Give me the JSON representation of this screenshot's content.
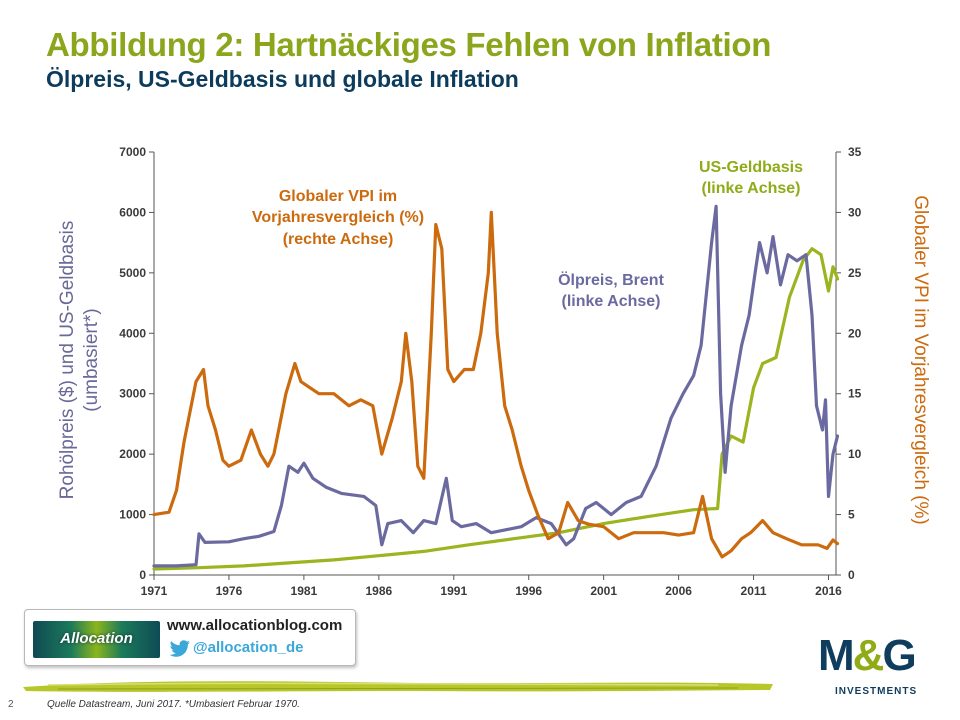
{
  "header": {
    "title": "Abbildung 2: Hartnäckiges Fehlen von Inflation",
    "subtitle": "Ölpreis, US-Geldbasis und globale Inflation"
  },
  "promo": {
    "logo_text": "Allocation",
    "website": "www.allocationblog.com",
    "twitter": "@allocation_de"
  },
  "footer": {
    "page_number": "2",
    "source": "Quelle Datastream, Juni 2017. *Umbasiert Februar 1970."
  },
  "brand": {
    "name_left": "M",
    "ampersand": "&",
    "name_right": "G",
    "tagline": "INVESTMENTS"
  },
  "colors": {
    "title": "#8ba51c",
    "subtitle": "#0d3b5c",
    "oil": "#6b6aa0",
    "money_base": "#9ab520",
    "cpi": "#cc6a0e",
    "axis": "#555555"
  },
  "chart_data": {
    "type": "line",
    "y_left": {
      "label_line1": "Rohölpreis ($) und US-Geldbasis",
      "label_line2": "(umbasiert*)",
      "range": [
        0,
        7000
      ],
      "ticks": [
        "0",
        "1000",
        "2000",
        "3000",
        "4000",
        "5000",
        "6000",
        "7000"
      ]
    },
    "y_right": {
      "label": "Globaler VPI im Vorjahresvergleich (%)",
      "range": [
        0,
        35
      ],
      "ticks": [
        "0",
        "5",
        "10",
        "15",
        "20",
        "25",
        "30",
        "35"
      ]
    },
    "x": {
      "range": [
        1971,
        2016.5
      ],
      "ticks": [
        "1971",
        "1976",
        "1981",
        "1986",
        "1991",
        "1996",
        "2001",
        "2006",
        "2011",
        "2016"
      ]
    },
    "annotations": {
      "cpi_line1": "Globaler VPI im",
      "cpi_line2": "Vorjahresvergleich (%)",
      "cpi_line3": "(rechte Achse)",
      "oil_line1": "Ölpreis, Brent",
      "oil_line2": "(linke Achse)",
      "mb_line1": "US-Geldbasis",
      "mb_line2": "(linke Achse)"
    },
    "series": [
      {
        "name": "Ölpreis, Brent",
        "axis": "left",
        "points": [
          [
            1971,
            150
          ],
          [
            1972.5,
            150
          ],
          [
            1973.8,
            170
          ],
          [
            1974.0,
            680
          ],
          [
            1974.4,
            540
          ],
          [
            1976,
            550
          ],
          [
            1977,
            600
          ],
          [
            1978,
            640
          ],
          [
            1979,
            720
          ],
          [
            1979.5,
            1150
          ],
          [
            1980,
            1800
          ],
          [
            1980.6,
            1700
          ],
          [
            1981,
            1850
          ],
          [
            1981.6,
            1600
          ],
          [
            1982.5,
            1450
          ],
          [
            1983.5,
            1350
          ],
          [
            1985,
            1300
          ],
          [
            1985.8,
            1150
          ],
          [
            1986.2,
            500
          ],
          [
            1986.6,
            850
          ],
          [
            1987.5,
            900
          ],
          [
            1988.3,
            700
          ],
          [
            1989,
            900
          ],
          [
            1989.8,
            850
          ],
          [
            1990.5,
            1600
          ],
          [
            1990.9,
            900
          ],
          [
            1991.5,
            800
          ],
          [
            1992.5,
            850
          ],
          [
            1993.5,
            700
          ],
          [
            1994.5,
            750
          ],
          [
            1995.5,
            800
          ],
          [
            1996.5,
            950
          ],
          [
            1997.5,
            850
          ],
          [
            1998.5,
            500
          ],
          [
            1999,
            600
          ],
          [
            1999.8,
            1100
          ],
          [
            2000.5,
            1200
          ],
          [
            2001.5,
            1000
          ],
          [
            2002.5,
            1200
          ],
          [
            2003.5,
            1300
          ],
          [
            2004.5,
            1800
          ],
          [
            2005.5,
            2600
          ],
          [
            2006.3,
            3000
          ],
          [
            2007,
            3300
          ],
          [
            2007.5,
            3800
          ],
          [
            2008.2,
            5500
          ],
          [
            2008.5,
            6100
          ],
          [
            2008.8,
            3000
          ],
          [
            2009.1,
            1700
          ],
          [
            2009.5,
            2800
          ],
          [
            2010.2,
            3800
          ],
          [
            2010.7,
            4300
          ],
          [
            2011.1,
            5000
          ],
          [
            2011.4,
            5500
          ],
          [
            2011.9,
            5000
          ],
          [
            2012.3,
            5600
          ],
          [
            2012.8,
            4800
          ],
          [
            2013.3,
            5300
          ],
          [
            2013.9,
            5200
          ],
          [
            2014.5,
            5300
          ],
          [
            2014.9,
            4300
          ],
          [
            2015.2,
            2800
          ],
          [
            2015.6,
            2400
          ],
          [
            2015.8,
            2900
          ],
          [
            2016.0,
            1300
          ],
          [
            2016.3,
            2000
          ],
          [
            2016.6,
            2300
          ]
        ]
      },
      {
        "name": "US-Geldbasis",
        "axis": "left",
        "points": [
          [
            1971,
            100
          ],
          [
            1974,
            120
          ],
          [
            1977,
            150
          ],
          [
            1980,
            200
          ],
          [
            1983,
            250
          ],
          [
            1986,
            320
          ],
          [
            1989,
            390
          ],
          [
            1992,
            500
          ],
          [
            1995,
            600
          ],
          [
            1998,
            700
          ],
          [
            2001,
            850
          ],
          [
            2004,
            970
          ],
          [
            2007,
            1080
          ],
          [
            2008.6,
            1100
          ],
          [
            2008.9,
            2000
          ],
          [
            2009.5,
            2300
          ],
          [
            2010.3,
            2200
          ],
          [
            2011.0,
            3100
          ],
          [
            2011.6,
            3500
          ],
          [
            2012.5,
            3600
          ],
          [
            2013.4,
            4600
          ],
          [
            2014.3,
            5200
          ],
          [
            2014.9,
            5400
          ],
          [
            2015.5,
            5300
          ],
          [
            2016.0,
            4700
          ],
          [
            2016.3,
            5100
          ],
          [
            2016.6,
            4900
          ]
        ]
      },
      {
        "name": "Globaler VPI im Vorjahresvergleich (%)",
        "axis": "right",
        "points": [
          [
            1971,
            5
          ],
          [
            1972,
            5.2
          ],
          [
            1972.5,
            7
          ],
          [
            1973,
            11
          ],
          [
            1973.8,
            16
          ],
          [
            1974.3,
            17
          ],
          [
            1974.6,
            14
          ],
          [
            1975.1,
            12
          ],
          [
            1975.6,
            9.5
          ],
          [
            1976,
            9
          ],
          [
            1976.8,
            9.5
          ],
          [
            1977.5,
            12
          ],
          [
            1978.1,
            10
          ],
          [
            1978.6,
            9
          ],
          [
            1979,
            10
          ],
          [
            1979.8,
            15
          ],
          [
            1980.4,
            17.5
          ],
          [
            1980.8,
            16
          ],
          [
            1981.4,
            15.5
          ],
          [
            1982,
            15
          ],
          [
            1983,
            15
          ],
          [
            1984,
            14
          ],
          [
            1984.8,
            14.5
          ],
          [
            1985.6,
            14
          ],
          [
            1986.2,
            10
          ],
          [
            1986.9,
            13
          ],
          [
            1987.5,
            16
          ],
          [
            1987.8,
            20
          ],
          [
            1988.2,
            16
          ],
          [
            1988.6,
            9
          ],
          [
            1989,
            8
          ],
          [
            1989.5,
            20
          ],
          [
            1989.8,
            29
          ],
          [
            1990.2,
            27
          ],
          [
            1990.6,
            17
          ],
          [
            1991,
            16
          ],
          [
            1991.7,
            17
          ],
          [
            1992.3,
            17
          ],
          [
            1992.8,
            20
          ],
          [
            1993.3,
            25
          ],
          [
            1993.5,
            30
          ],
          [
            1993.9,
            20
          ],
          [
            1994.4,
            14
          ],
          [
            1994.9,
            12
          ],
          [
            1995.5,
            9
          ],
          [
            1996,
            7
          ],
          [
            1996.6,
            5
          ],
          [
            1997.3,
            3
          ],
          [
            1998,
            3.5
          ],
          [
            1998.6,
            6
          ],
          [
            1999.3,
            4.5
          ],
          [
            2000,
            4.2
          ],
          [
            2001,
            4
          ],
          [
            2002,
            3
          ],
          [
            2003,
            3.5
          ],
          [
            2004,
            3.5
          ],
          [
            2005,
            3.5
          ],
          [
            2006,
            3.3
          ],
          [
            2007,
            3.5
          ],
          [
            2007.6,
            6.5
          ],
          [
            2008.2,
            3
          ],
          [
            2008.9,
            1.5
          ],
          [
            2009.5,
            2
          ],
          [
            2010.2,
            3
          ],
          [
            2010.8,
            3.5
          ],
          [
            2011.6,
            4.5
          ],
          [
            2012.3,
            3.5
          ],
          [
            2013.2,
            3
          ],
          [
            2014.2,
            2.5
          ],
          [
            2015.3,
            2.5
          ],
          [
            2015.9,
            2.2
          ],
          [
            2016.3,
            2.9
          ],
          [
            2016.6,
            2.6
          ]
        ]
      }
    ]
  }
}
